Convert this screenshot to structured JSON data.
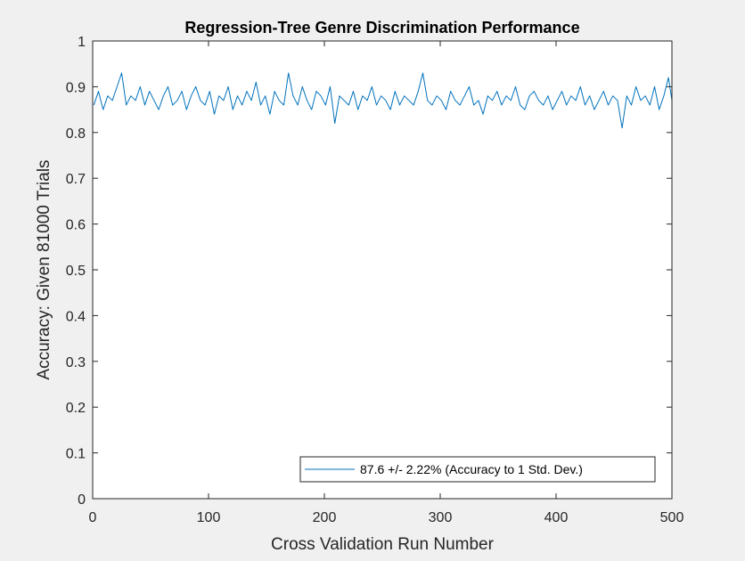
{
  "chart_data": {
    "type": "line",
    "title": "Regression-Tree Genre Discrimination Performance",
    "xlabel": "Cross Validation Run Number",
    "ylabel": "Accuracy: Given 81000 Trials",
    "xlim": [
      0,
      500
    ],
    "ylim": [
      0,
      1
    ],
    "xticks": [
      "0",
      "100",
      "200",
      "300",
      "400",
      "500"
    ],
    "yticks": [
      "0",
      "0.1",
      "0.2",
      "0.3",
      "0.4",
      "0.5",
      "0.6",
      "0.7",
      "0.8",
      "0.9",
      "1"
    ],
    "grid": false,
    "legend_location": "bottom-right",
    "series": [
      {
        "name": "87.6 +/- 2.22% (Accuracy to 1 Std. Dev.)",
        "color": "#0072bd",
        "x": [
          1,
          5,
          9,
          13,
          17,
          21,
          25,
          29,
          33,
          37,
          41,
          45,
          49,
          53,
          57,
          61,
          65,
          69,
          73,
          77,
          81,
          85,
          89,
          93,
          97,
          101,
          105,
          109,
          113,
          117,
          121,
          125,
          129,
          133,
          137,
          141,
          145,
          149,
          153,
          157,
          161,
          165,
          169,
          173,
          177,
          181,
          185,
          189,
          193,
          197,
          201,
          205,
          209,
          213,
          217,
          221,
          225,
          229,
          233,
          237,
          241,
          245,
          249,
          253,
          257,
          261,
          265,
          269,
          273,
          277,
          281,
          285,
          289,
          293,
          297,
          301,
          305,
          309,
          313,
          317,
          321,
          325,
          329,
          333,
          337,
          341,
          345,
          349,
          353,
          357,
          361,
          365,
          369,
          373,
          377,
          381,
          385,
          389,
          393,
          397,
          401,
          405,
          409,
          413,
          417,
          421,
          425,
          429,
          433,
          437,
          441,
          445,
          449,
          453,
          457,
          461,
          465,
          469,
          473,
          477,
          481,
          485,
          489,
          493,
          497,
          500
        ],
        "y": [
          0.86,
          0.89,
          0.85,
          0.88,
          0.87,
          0.9,
          0.93,
          0.86,
          0.88,
          0.87,
          0.9,
          0.86,
          0.89,
          0.87,
          0.85,
          0.88,
          0.9,
          0.86,
          0.87,
          0.89,
          0.85,
          0.88,
          0.9,
          0.87,
          0.86,
          0.89,
          0.84,
          0.88,
          0.87,
          0.9,
          0.85,
          0.88,
          0.86,
          0.89,
          0.87,
          0.91,
          0.86,
          0.88,
          0.84,
          0.89,
          0.87,
          0.86,
          0.93,
          0.88,
          0.86,
          0.9,
          0.87,
          0.85,
          0.89,
          0.88,
          0.86,
          0.9,
          0.82,
          0.88,
          0.87,
          0.86,
          0.89,
          0.85,
          0.88,
          0.87,
          0.9,
          0.86,
          0.88,
          0.87,
          0.85,
          0.89,
          0.86,
          0.88,
          0.87,
          0.86,
          0.89,
          0.93,
          0.87,
          0.86,
          0.88,
          0.87,
          0.85,
          0.89,
          0.87,
          0.86,
          0.88,
          0.9,
          0.86,
          0.87,
          0.84,
          0.88,
          0.87,
          0.89,
          0.86,
          0.88,
          0.87,
          0.9,
          0.86,
          0.85,
          0.88,
          0.89,
          0.87,
          0.86,
          0.88,
          0.85,
          0.87,
          0.89,
          0.86,
          0.88,
          0.87,
          0.9,
          0.86,
          0.88,
          0.85,
          0.87,
          0.89,
          0.86,
          0.88,
          0.87,
          0.81,
          0.88,
          0.86,
          0.9,
          0.87,
          0.88,
          0.86,
          0.9,
          0.85,
          0.88,
          0.92,
          0.87
        ]
      }
    ]
  }
}
